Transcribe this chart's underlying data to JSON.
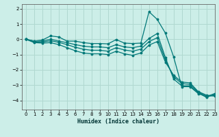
{
  "xlabel": "Humidex (Indice chaleur)",
  "background_color": "#cceee8",
  "grid_color": "#b0d8d0",
  "line_color": "#007878",
  "xlim": [
    -0.5,
    23
  ],
  "ylim": [
    -4.6,
    2.3
  ],
  "x_ticks": [
    0,
    1,
    2,
    3,
    4,
    5,
    6,
    7,
    8,
    9,
    10,
    11,
    12,
    13,
    14,
    15,
    16,
    17,
    18,
    19,
    20,
    21,
    22,
    23
  ],
  "y_ticks": [
    -4,
    -3,
    -2,
    -1,
    0,
    1,
    2
  ],
  "series": [
    [
      0.0,
      -0.12,
      -0.05,
      0.22,
      0.15,
      -0.12,
      -0.12,
      -0.22,
      -0.28,
      -0.28,
      -0.3,
      -0.02,
      -0.25,
      -0.28,
      -0.25,
      1.8,
      1.3,
      0.4,
      -1.15,
      -3.1,
      -3.1,
      -3.55,
      -3.75,
      -3.55
    ],
    [
      0.0,
      -0.12,
      -0.12,
      0.0,
      -0.12,
      -0.22,
      -0.35,
      -0.45,
      -0.5,
      -0.5,
      -0.55,
      -0.35,
      -0.5,
      -0.55,
      -0.45,
      0.05,
      0.38,
      -1.2,
      -2.6,
      -3.05,
      -3.05,
      -3.5,
      -3.8,
      -3.6
    ],
    [
      0.0,
      -0.18,
      -0.18,
      -0.1,
      -0.2,
      -0.35,
      -0.52,
      -0.65,
      -0.72,
      -0.72,
      -0.78,
      -0.55,
      -0.7,
      -0.78,
      -0.65,
      -0.15,
      0.1,
      -1.35,
      -2.45,
      -2.9,
      -2.95,
      -3.45,
      -3.72,
      -3.68
    ],
    [
      0.0,
      -0.22,
      -0.25,
      -0.22,
      -0.35,
      -0.55,
      -0.75,
      -0.9,
      -0.95,
      -0.95,
      -1.0,
      -0.78,
      -0.95,
      -1.05,
      -0.9,
      -0.38,
      -0.15,
      -1.5,
      -2.35,
      -2.8,
      -2.85,
      -3.42,
      -3.65,
      -3.72
    ]
  ]
}
